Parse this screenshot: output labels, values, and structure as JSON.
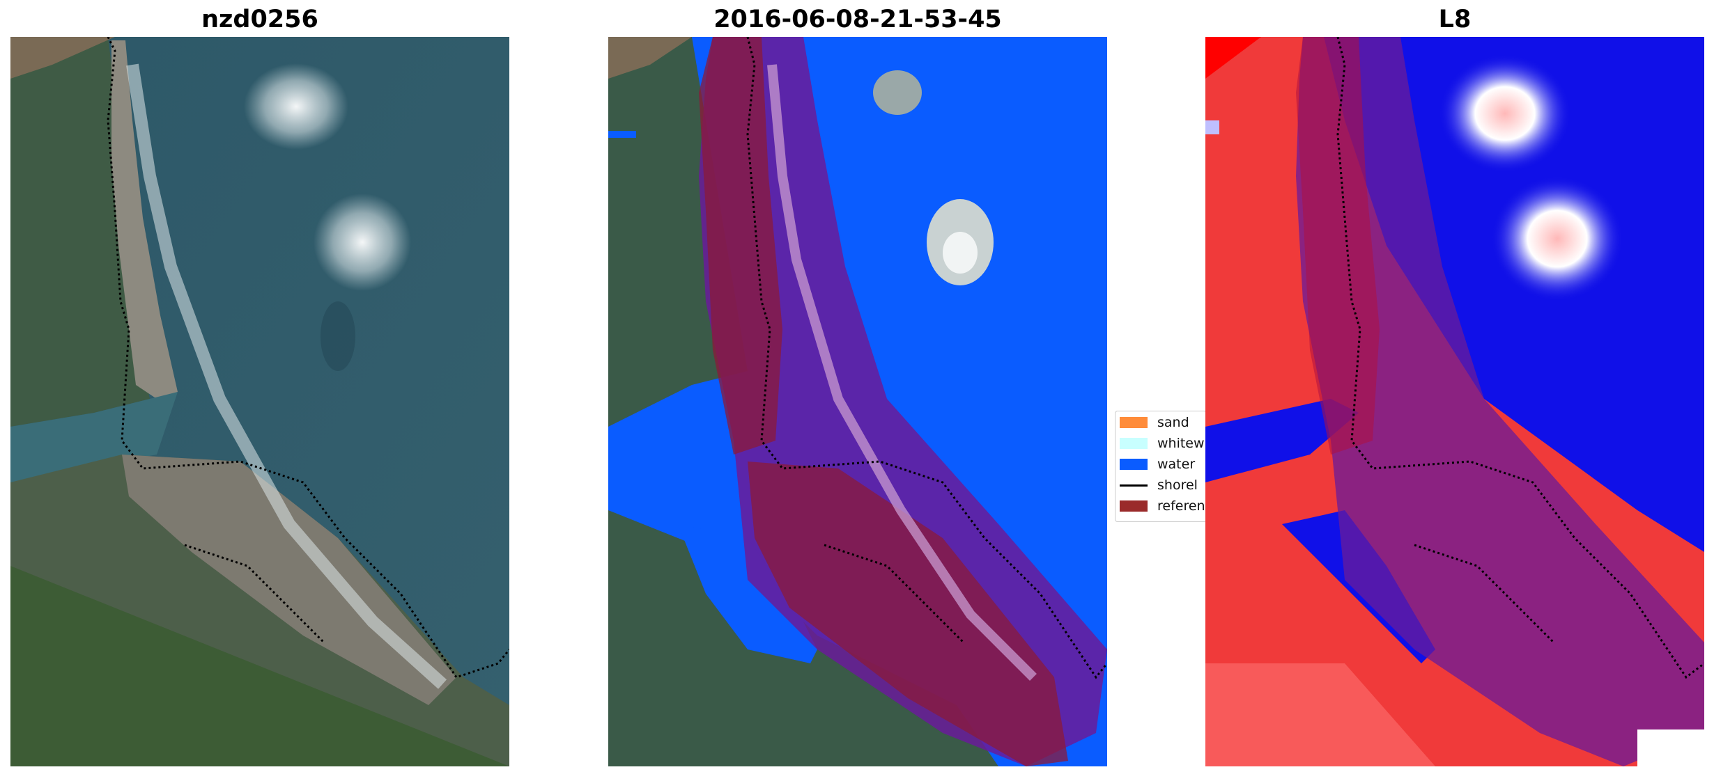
{
  "panels": [
    {
      "title": "nzd0256"
    },
    {
      "title": "2016-06-08-21-53-45"
    },
    {
      "title": "L8"
    }
  ],
  "legend": {
    "items": [
      {
        "label": "sand",
        "color": "#ff8c3a",
        "kind": "patch"
      },
      {
        "label": "whitew",
        "color": "#c8ffff",
        "kind": "patch"
      },
      {
        "label": "water",
        "color": "#0a5cff",
        "kind": "patch"
      },
      {
        "label": "shorel",
        "color": "#000000",
        "kind": "line"
      },
      {
        "label": "referen",
        "color": "#9a2b2b",
        "kind": "patch"
      }
    ]
  },
  "colors": {
    "ocean": "#2f5a6a",
    "land": "#3d5a3f",
    "water_class": "#0a5cff",
    "buffer_overlay": "#6a1b9a",
    "reference_overlay": "#8b1a3a",
    "index_positive": "#e21a1a",
    "index_negative": "#1010e8"
  }
}
